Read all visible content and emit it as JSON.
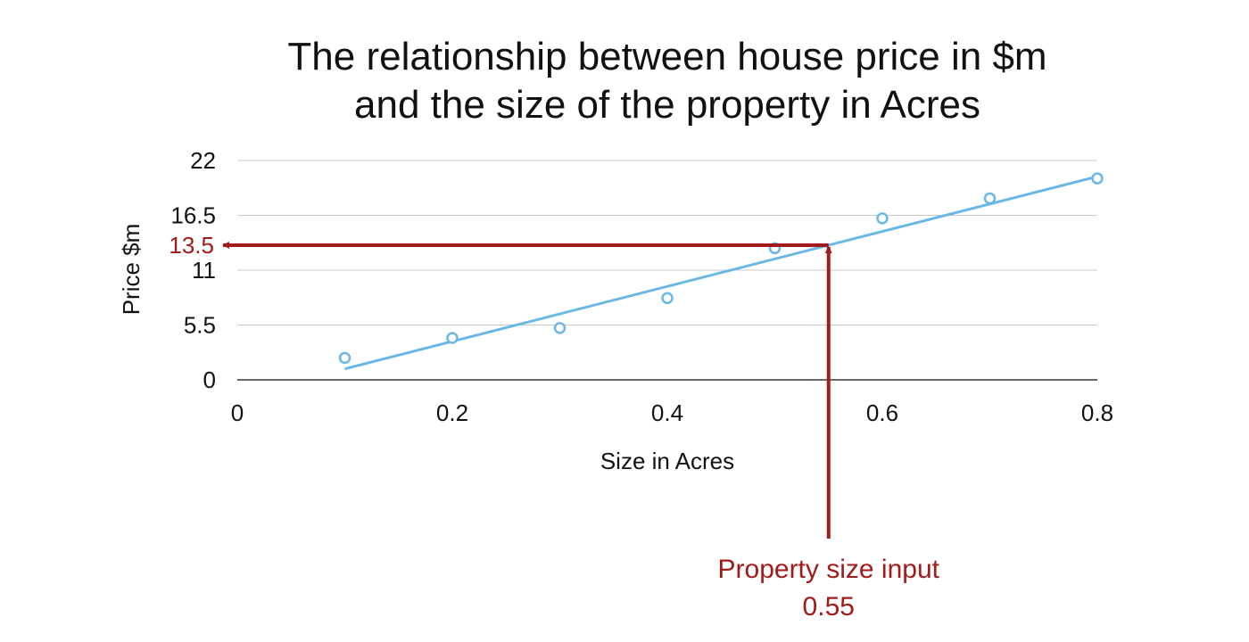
{
  "chart_data": {
    "type": "scatter",
    "title_lines": [
      "The relationship between house price in $m",
      "and the size of the property in Acres"
    ],
    "xlabel": "Size in Acres",
    "ylabel": "Price $m",
    "xlim": [
      0,
      0.8
    ],
    "ylim": [
      0,
      22
    ],
    "x_ticks": [
      0,
      0.2,
      0.4,
      0.6,
      0.8
    ],
    "y_ticks": [
      0,
      5.5,
      11,
      16.5,
      22
    ],
    "x_tick_labels": [
      "0",
      "0.2",
      "0.4",
      "0.6",
      "0.8"
    ],
    "y_tick_labels": [
      "0",
      "5.5",
      "11",
      "16.5",
      "22"
    ],
    "grid": "horizontal",
    "series": [
      {
        "x": [
          0.1,
          0.2,
          0.3,
          0.4,
          0.5,
          0.6,
          0.7,
          0.8
        ],
        "y": [
          2.2,
          4.2,
          5.2,
          8.2,
          13.2,
          16.2,
          18.2,
          20.2
        ]
      }
    ],
    "trendline": {
      "x": [
        0.1,
        0.8
      ],
      "y": [
        1.1,
        20.4
      ]
    },
    "prediction": {
      "x": 0.55,
      "y": 13.5,
      "y_label": "13.5",
      "x_label_lines": [
        "Property size input",
        "0.55"
      ]
    },
    "colors": {
      "points": "#6ab7e6",
      "trendline": "#6ab7e6",
      "annotation": "#a01c1c",
      "grid": "#c8c8c8",
      "axis": "#333333"
    }
  }
}
